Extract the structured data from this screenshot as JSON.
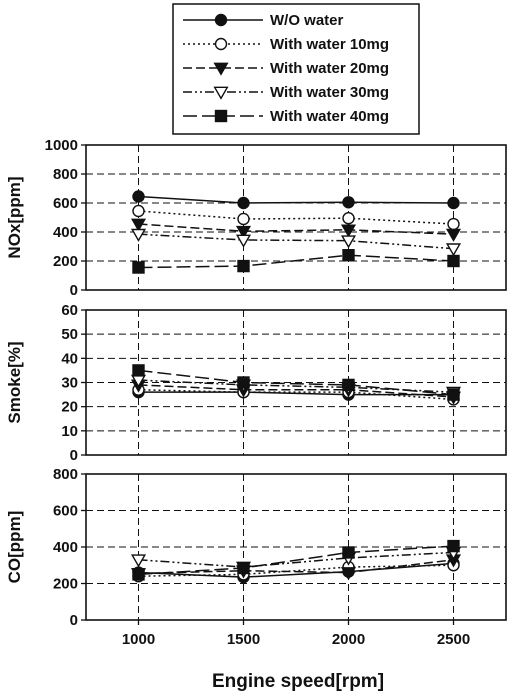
{
  "chart_data": {
    "type": "line",
    "xlabel": "Engine speed[rpm]",
    "x": [
      1000,
      1500,
      2000,
      2500
    ],
    "xlim": [
      750,
      2750
    ],
    "legend_position": "top-center",
    "legend": [
      "W/O water",
      "With water 10mg",
      "With water 20mg",
      "With water 30mg",
      "With water 40mg"
    ],
    "grid": true,
    "panels": [
      {
        "ylabel": "NOx[ppm]",
        "ylim": [
          0,
          1000
        ],
        "yticks": [
          0,
          200,
          400,
          600,
          800,
          1000
        ],
        "series": [
          {
            "name": "W/O water",
            "values": [
              645,
              600,
              605,
              600
            ]
          },
          {
            "name": "With water 10mg",
            "values": [
              545,
              490,
              495,
              455
            ]
          },
          {
            "name": "With water 20mg",
            "values": [
              455,
              405,
              415,
              385
            ]
          },
          {
            "name": "With water 30mg",
            "values": [
              385,
              345,
              340,
              285
            ]
          },
          {
            "name": "With water 40mg",
            "values": [
              155,
              165,
              240,
              200
            ]
          }
        ]
      },
      {
        "ylabel": "Smoke[%]",
        "ylim": [
          0,
          60
        ],
        "yticks": [
          0,
          10,
          20,
          30,
          40,
          50,
          60
        ],
        "series": [
          {
            "name": "W/O water",
            "values": [
              26,
              26,
              25,
              25
            ]
          },
          {
            "name": "With water 10mg",
            "values": [
              27,
              26,
              26,
              23
            ]
          },
          {
            "name": "With water 20mg",
            "values": [
              29,
              27,
              27,
              24
            ]
          },
          {
            "name": "With water 30mg",
            "values": [
              31,
              29,
              28,
              26
            ]
          },
          {
            "name": "With water 40mg",
            "values": [
              35,
              30,
              29,
              25
            ]
          }
        ]
      },
      {
        "ylabel": "CO[ppm]",
        "ylim": [
          0,
          800
        ],
        "yticks": [
          0,
          200,
          400,
          600,
          800
        ],
        "series": [
          {
            "name": "W/O water",
            "values": [
              260,
              235,
              265,
              310
            ]
          },
          {
            "name": "With water 10mg",
            "values": [
              240,
              250,
              290,
              300
            ]
          },
          {
            "name": "With water 20mg",
            "values": [
              255,
              270,
              260,
              330
            ]
          },
          {
            "name": "With water 30mg",
            "values": [
              330,
              290,
              340,
              370
            ]
          },
          {
            "name": "With water 40mg",
            "values": [
              250,
              285,
              370,
              405
            ]
          }
        ]
      }
    ]
  }
}
